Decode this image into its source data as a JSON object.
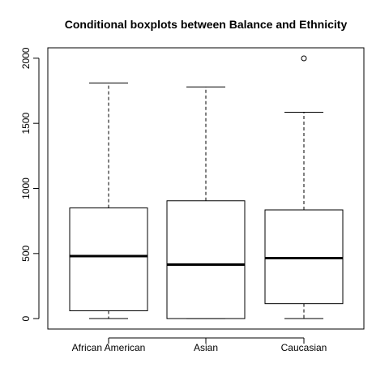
{
  "chart_data": {
    "type": "boxplot",
    "title": "Conditional boxplots between Balance and Ethnicity",
    "xlabel": "",
    "ylabel": "",
    "categories": [
      "African American",
      "Asian",
      "Caucasian"
    ],
    "ylim": [
      -80,
      2080
    ],
    "yticks": [
      0,
      500,
      1000,
      1500,
      2000
    ],
    "boxes": [
      {
        "name": "African American",
        "whisker_low": 0,
        "q1": 60,
        "median": 480,
        "q3": 850,
        "whisker_high": 1810,
        "outliers": []
      },
      {
        "name": "Asian",
        "whisker_low": 0,
        "q1": 0,
        "median": 415,
        "q3": 905,
        "whisker_high": 1780,
        "outliers": []
      },
      {
        "name": "Caucasian",
        "whisker_low": 0,
        "q1": 115,
        "median": 465,
        "q3": 835,
        "whisker_high": 1585,
        "outliers": [
          1999
        ]
      }
    ],
    "colors": {
      "box_fill": "#ffffff",
      "stroke": "#000000"
    }
  }
}
